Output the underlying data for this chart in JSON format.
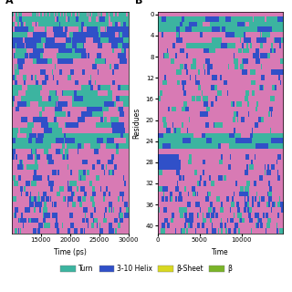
{
  "title_A": "A",
  "title_B": "B",
  "panel_A": {
    "time_start": 10000,
    "time_end": 30000,
    "n_residues": 42,
    "xticks": [
      15000,
      20000,
      25000,
      30000
    ],
    "xlabel": "Time (ps)"
  },
  "panel_B": {
    "time_start": 0,
    "time_end": 15000,
    "n_residues": 42,
    "xticks": [
      0,
      5000,
      10000
    ],
    "xlabel": "Time"
  },
  "colors": {
    "turn": "#3cb4a0",
    "helix310": "#3050c8",
    "coil": "#d87ab4",
    "beta_sheet": "#d8d820",
    "beta_bridge": "#7ab428"
  },
  "background_color": "#ffffff",
  "seed": 42,
  "yticks_B": [
    0,
    4,
    8,
    12,
    16,
    20,
    24,
    28,
    32,
    36,
    40
  ]
}
